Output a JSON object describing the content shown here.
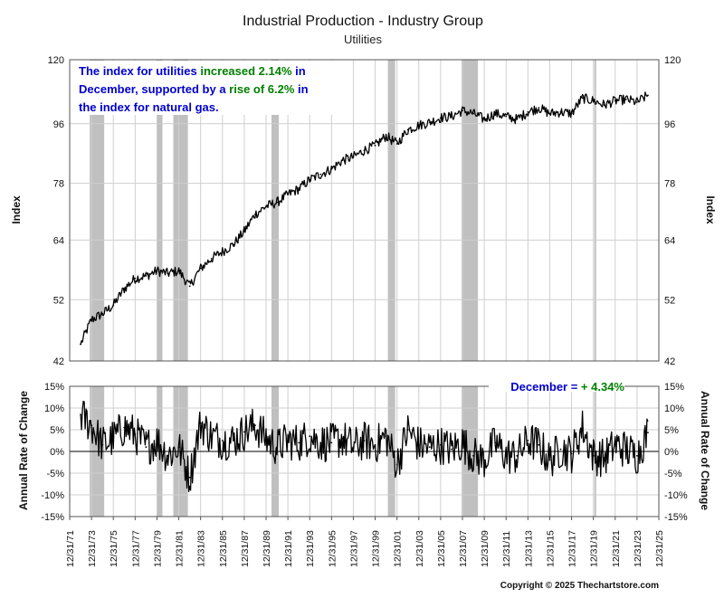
{
  "chart_data": [
    {
      "type": "line",
      "title": "Industrial Production - Industry Group",
      "subtitle": "Utilities",
      "ylabel": "Index",
      "ylabel_right": "Index",
      "ylim": [
        42,
        120
      ],
      "yscale": "log",
      "yticks": [
        42,
        52,
        64,
        78,
        96,
        120
      ],
      "xlim": [
        "1971-12-31",
        "2025-12-31"
      ],
      "grid": true,
      "annotation": {
        "segments": [
          {
            "text": "The index for utilities ",
            "color": "#0000cc"
          },
          {
            "text": "increased 2.14%",
            "color": "#008000"
          },
          {
            "text": " in",
            "color": "#0000cc"
          },
          {
            "text": "December, supported by a ",
            "color": "#0000cc"
          },
          {
            "text": "rise of 6.2%",
            "color": "#008000"
          },
          {
            "text": " in",
            "color": "#0000cc"
          },
          {
            "text": "the index for natural gas.",
            "color": "#0000cc"
          }
        ]
      },
      "recession_shading": [
        [
          "1973-11-01",
          "1975-03-01"
        ],
        [
          "1980-01-01",
          "1980-07-01"
        ],
        [
          "1981-07-01",
          "1982-11-01"
        ],
        [
          "1990-07-01",
          "1991-03-01"
        ],
        [
          "2001-03-01",
          "2001-11-01"
        ],
        [
          "2007-12-01",
          "2009-06-01"
        ],
        [
          "2020-02-01",
          "2020-04-01"
        ]
      ],
      "series": [
        {
          "x": [
            "1972-12-31",
            "1973-12-31",
            "1974-12-31",
            "1975-12-31",
            "1976-12-31",
            "1977-12-31",
            "1978-12-31",
            "1979-12-31",
            "1980-12-31",
            "1981-12-31",
            "1982-12-31",
            "1983-12-31",
            "1984-12-31",
            "1985-12-31",
            "1986-12-31",
            "1987-12-31",
            "1988-12-31",
            "1989-12-31",
            "1990-12-31",
            "1991-12-31",
            "1992-12-31",
            "1993-12-31",
            "1994-12-31",
            "1995-12-31",
            "1996-12-31",
            "1997-12-31",
            "1998-12-31",
            "1999-12-31",
            "2000-12-31",
            "2001-12-31",
            "2002-12-31",
            "2003-12-31",
            "2004-12-31",
            "2005-12-31",
            "2006-12-31",
            "2007-12-31",
            "2008-12-31",
            "2009-12-31",
            "2010-12-31",
            "2011-12-31",
            "2012-12-31",
            "2013-12-31",
            "2014-12-31",
            "2015-12-31",
            "2016-12-31",
            "2017-12-31",
            "2018-12-31",
            "2019-12-31",
            "2020-12-31",
            "2021-12-31",
            "2022-12-31",
            "2023-12-31",
            "2024-12-31"
          ],
          "values": [
            44.5,
            48.5,
            49.5,
            51.0,
            54.0,
            56.0,
            56.5,
            57.5,
            57.0,
            57.5,
            54.5,
            58.0,
            60.0,
            61.5,
            63.0,
            66.0,
            70.0,
            72.0,
            73.0,
            75.0,
            76.5,
            79.0,
            80.5,
            82.0,
            84.5,
            85.5,
            87.5,
            89.0,
            92.0,
            89.5,
            94.0,
            95.5,
            96.5,
            98.0,
            98.5,
            100.5,
            99.5,
            97.5,
            99.5,
            98.5,
            97.5,
            100.0,
            101.5,
            99.5,
            100.0,
            99.5,
            105.0,
            104.0,
            102.5,
            104.0,
            104.5,
            103.5,
            106.0
          ]
        }
      ]
    },
    {
      "type": "line",
      "ylabel": "Annual Rate of Change",
      "ylabel_right": "Annual Rate of Change",
      "ylim": [
        -15,
        15
      ],
      "yticks": [
        -15,
        -10,
        -5,
        0,
        5,
        10,
        15
      ],
      "ytick_labels": [
        "-15%",
        "-10%",
        "-5%",
        "0%",
        "5%",
        "10%",
        "15%"
      ],
      "xlim": [
        "1971-12-31",
        "2025-12-31"
      ],
      "xtick_labels": [
        "12/31/71",
        "12/31/73",
        "12/31/75",
        "12/31/77",
        "12/31/79",
        "12/31/81",
        "12/31/83",
        "12/31/85",
        "12/31/87",
        "12/31/89",
        "12/31/91",
        "12/31/93",
        "12/31/95",
        "12/31/97",
        "12/31/99",
        "12/31/01",
        "12/31/03",
        "12/31/05",
        "12/31/07",
        "12/31/09",
        "12/31/11",
        "12/31/13",
        "12/31/15",
        "12/31/17",
        "12/31/19",
        "12/31/21",
        "12/31/23",
        "12/31/25"
      ],
      "annotation": {
        "segments": [
          {
            "text": "December = ",
            "color": "#0000cc"
          },
          {
            "text": "+ 4.34%",
            "color": "#008000"
          }
        ]
      },
      "series": [
        {
          "x": [
            "1972-12-31",
            "1973-12-31",
            "1974-12-31",
            "1975-12-31",
            "1976-12-31",
            "1977-12-31",
            "1978-12-31",
            "1979-12-31",
            "1980-12-31",
            "1981-12-31",
            "1982-12-31",
            "1983-12-31",
            "1984-12-31",
            "1985-12-31",
            "1986-12-31",
            "1987-12-31",
            "1988-12-31",
            "1989-12-31",
            "1990-12-31",
            "1991-12-31",
            "1992-12-31",
            "1993-12-31",
            "1994-12-31",
            "1995-12-31",
            "1996-12-31",
            "1997-12-31",
            "1998-12-31",
            "1999-12-31",
            "2000-12-31",
            "2001-12-31",
            "2002-12-31",
            "2003-12-31",
            "2004-12-31",
            "2005-12-31",
            "2006-12-31",
            "2007-12-31",
            "2008-12-31",
            "2009-12-31",
            "2010-12-31",
            "2011-12-31",
            "2012-12-31",
            "2013-12-31",
            "2014-12-31",
            "2015-12-31",
            "2016-12-31",
            "2017-12-31",
            "2018-12-31",
            "2019-12-31",
            "2020-12-31",
            "2021-12-31",
            "2022-12-31",
            "2023-12-31",
            "2024-12-31"
          ],
          "values": [
            8.5,
            6.0,
            1.5,
            3.0,
            5.5,
            4.0,
            1.0,
            2.5,
            -1.0,
            1.0,
            -6.0,
            6.5,
            3.5,
            2.5,
            2.5,
            4.5,
            6.0,
            3.0,
            1.0,
            2.5,
            2.0,
            3.5,
            2.0,
            2.0,
            3.0,
            1.0,
            2.5,
            1.5,
            3.5,
            -3.0,
            5.0,
            1.5,
            1.0,
            1.5,
            0.5,
            2.0,
            -1.0,
            -2.0,
            2.0,
            -1.0,
            -1.0,
            2.5,
            1.5,
            -2.0,
            0.5,
            -0.5,
            5.5,
            -1.0,
            -1.5,
            1.5,
            0.5,
            -1.0,
            4.34
          ]
        }
      ]
    }
  ],
  "copyright": "Copyright © 2025 Thechartstore.com"
}
